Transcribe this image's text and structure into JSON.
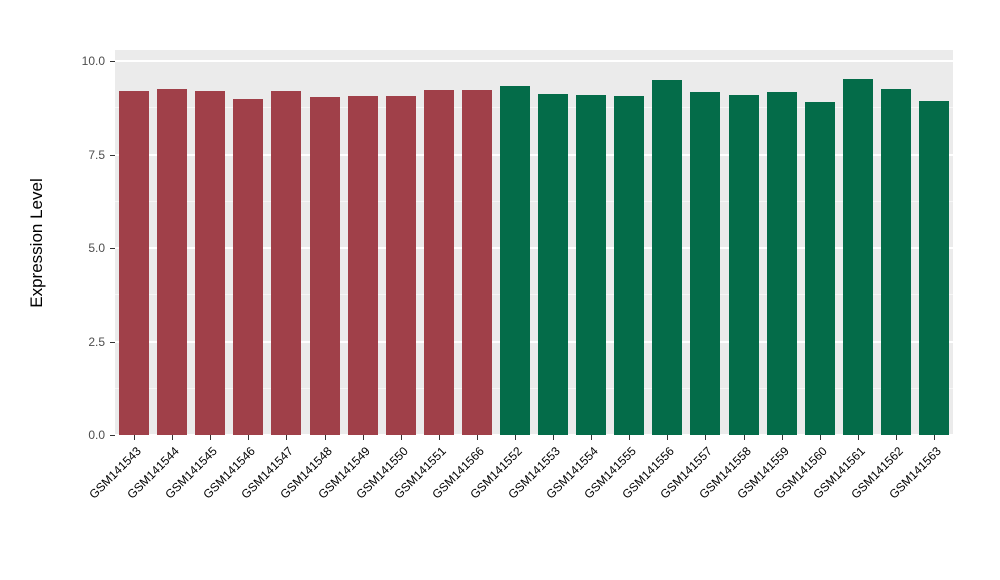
{
  "chart_data": {
    "type": "bar",
    "title": "",
    "ylabel": "Expression Level",
    "xlabel": "",
    "categories": [
      "GSM141543",
      "GSM141544",
      "GSM141545",
      "GSM141546",
      "GSM141547",
      "GSM141548",
      "GSM141549",
      "GSM141550",
      "GSM141551",
      "GSM141566",
      "GSM141552",
      "GSM141553",
      "GSM141554",
      "GSM141555",
      "GSM141556",
      "GSM141557",
      "GSM141558",
      "GSM141559",
      "GSM141560",
      "GSM141561",
      "GSM141562",
      "GSM141563"
    ],
    "values": [
      9.2,
      9.27,
      9.2,
      8.99,
      9.2,
      9.04,
      9.07,
      9.07,
      9.22,
      9.22,
      9.35,
      9.13,
      9.1,
      9.07,
      9.5,
      9.17,
      9.1,
      9.17,
      8.9,
      9.53,
      9.25,
      8.93
    ],
    "groups": [
      "red",
      "red",
      "red",
      "red",
      "red",
      "red",
      "red",
      "red",
      "red",
      "red",
      "green",
      "green",
      "green",
      "green",
      "green",
      "green",
      "green",
      "green",
      "green",
      "green",
      "green",
      "green"
    ],
    "group_colors": {
      "red": "#A04049",
      "green": "#046C49"
    },
    "yticks": [
      0.0,
      2.5,
      5.0,
      7.5,
      10.0
    ],
    "ytick_labels": [
      "0.0",
      "2.5",
      "5.0",
      "7.5",
      "10.0"
    ],
    "minor_yticks": [
      1.25,
      3.75,
      6.25,
      8.75
    ],
    "ylim": [
      0,
      10.3
    ],
    "panel_background": "#EBEBEB",
    "gridline_color": "#FFFFFF",
    "grid": "on",
    "legend_position": "none"
  }
}
